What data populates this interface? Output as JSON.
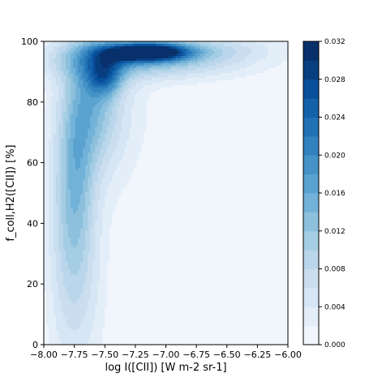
{
  "chart_data": {
    "type": "contour",
    "title": "",
    "xlabel": "log I([CII]) [W m-2 sr-1]",
    "ylabel": "f_coll,H2([CII]) [%]",
    "xlim": [
      -8.0,
      -6.0
    ],
    "ylim": [
      0,
      100
    ],
    "x_ticks": [
      -8.0,
      -7.75,
      -7.5,
      -7.25,
      -7.0,
      -6.75,
      -6.5,
      -6.25,
      -6.0
    ],
    "x_tick_labels": [
      "−8.00",
      "−7.75",
      "−7.50",
      "−7.25",
      "−7.00",
      "−6.75",
      "−6.50",
      "−6.25",
      "−6.00"
    ],
    "y_ticks": [
      0,
      20,
      40,
      60,
      80,
      100
    ],
    "y_tick_labels": [
      "0",
      "20",
      "40",
      "60",
      "80",
      "100"
    ],
    "colormap": "Blues",
    "colorbar": {
      "range": [
        0.0,
        0.032
      ],
      "ticks": [
        0.0,
        0.004,
        0.008,
        0.012,
        0.016,
        0.02,
        0.024,
        0.028,
        0.032
      ],
      "tick_labels": [
        "0.000",
        "0.004",
        "0.008",
        "0.012",
        "0.016",
        "0.020",
        "0.024",
        "0.028",
        "0.032"
      ],
      "levels": [
        0.0,
        0.002,
        0.004,
        0.006,
        0.008,
        0.01,
        0.012,
        0.014,
        0.016,
        0.018,
        0.02,
        0.022,
        0.024,
        0.026,
        0.028,
        0.03,
        0.032
      ],
      "colors": [
        "#f1f6fc",
        "#e3eef9",
        "#d6e6f4",
        "#cadef0",
        "#bad6eb",
        "#a5cde3",
        "#8cc0dd",
        "#73b2d8",
        "#5aa2cf",
        "#4592c6",
        "#3282be",
        "#2171b5",
        "#1361a9",
        "#08509b",
        "#083f80",
        "#08306b"
      ]
    },
    "density_components": [
      {
        "x": -7.15,
        "y": 96.5,
        "sx": 0.22,
        "sy": 2.0,
        "weight": 0.0315
      },
      {
        "x": -7.15,
        "y": 94.0,
        "sx": 0.55,
        "sy": 4.5,
        "weight": 0.0125
      },
      {
        "x": -7.45,
        "y": 94.5,
        "sx": 0.12,
        "sy": 3.0,
        "weight": 0.0045
      },
      {
        "x": -6.7,
        "y": 98.0,
        "sx": 0.45,
        "sy": 3.0,
        "weight": 0.0045
      },
      {
        "x": -7.5,
        "y": 88.0,
        "sx": 0.1,
        "sy": 4.0,
        "weight": 0.012
      },
      {
        "x": -7.58,
        "y": 82.0,
        "sx": 0.14,
        "sy": 16.0,
        "weight": 0.0105
      },
      {
        "x": -7.72,
        "y": 62.0,
        "sx": 0.1,
        "sy": 22.0,
        "weight": 0.0075
      },
      {
        "x": -7.78,
        "y": 40.0,
        "sx": 0.1,
        "sy": 32.0,
        "weight": 0.0055
      },
      {
        "x": -7.65,
        "y": 25.0,
        "sx": 0.13,
        "sy": 26.0,
        "weight": 0.0045
      },
      {
        "x": -7.9,
        "y": 48.0,
        "sx": 0.09,
        "sy": 40.0,
        "weight": 0.003
      },
      {
        "x": -7.38,
        "y": 78.0,
        "sx": 0.2,
        "sy": 20.0,
        "weight": 0.0035
      }
    ]
  }
}
